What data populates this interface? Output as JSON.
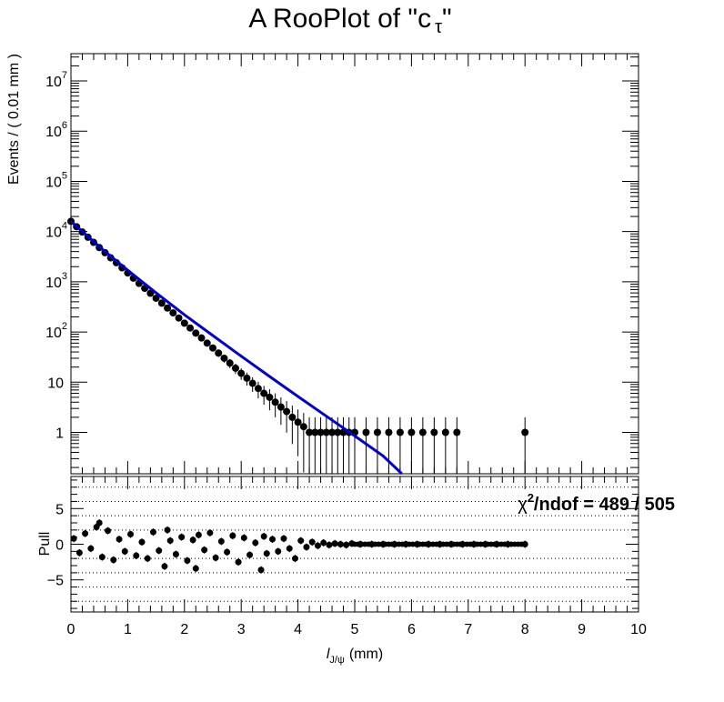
{
  "title": "A RooPlot of \"c τ\"",
  "title_main": "A RooPlot of \"c",
  "title_sub": "τ",
  "title_close": "\"",
  "colors": {
    "data": "#000000",
    "fit": "#0000cc",
    "frame": "#000000",
    "grid": "#000000"
  },
  "chart_data": [
    {
      "type": "scatter",
      "panel": "main",
      "ylabel": "Events / ( 0.01 mm )",
      "yscale": "log",
      "xlim": [
        0,
        10
      ],
      "ylim": [
        0.15,
        35000000
      ],
      "y_ticks": [
        {
          "value": 1,
          "label": "1"
        },
        {
          "value": 10,
          "label": "10"
        },
        {
          "value": 100,
          "label": "10",
          "exp": "2"
        },
        {
          "value": 1000,
          "label": "10",
          "exp": "3"
        },
        {
          "value": 10000,
          "label": "10",
          "exp": "4"
        },
        {
          "value": 100000,
          "label": "10",
          "exp": "5"
        },
        {
          "value": 1000000,
          "label": "10",
          "exp": "6"
        },
        {
          "value": 10000000,
          "label": "10",
          "exp": "7"
        }
      ],
      "series": [
        {
          "kind": "data",
          "x": [
            0.0,
            0.1,
            0.2,
            0.3,
            0.4,
            0.5,
            0.6,
            0.7,
            0.8,
            0.9,
            1.0,
            1.1,
            1.2,
            1.3,
            1.4,
            1.5,
            1.6,
            1.7,
            1.8,
            1.9,
            2.0,
            2.1,
            2.2,
            2.3,
            2.4,
            2.5,
            2.6,
            2.7,
            2.8,
            2.9,
            3.0,
            3.1,
            3.2,
            3.3,
            3.4,
            3.5,
            3.6,
            3.7,
            3.8,
            3.9,
            4.0,
            4.1,
            4.2,
            4.3,
            4.4,
            4.5,
            4.6,
            4.7,
            4.8,
            4.9,
            5.0,
            5.2,
            5.4,
            5.6,
            5.8,
            6.0,
            6.2,
            6.4,
            6.6,
            6.8,
            8.0
          ],
          "y": [
            16000,
            12500,
            9800,
            7700,
            6100,
            4800,
            3800,
            3000,
            2400,
            1900,
            1500,
            1180,
            930,
            740,
            590,
            470,
            375,
            300,
            240,
            190,
            150,
            120,
            95,
            76,
            60,
            48,
            38,
            30,
            24,
            19,
            15,
            12,
            9.5,
            7.5,
            6,
            5,
            4,
            3.2,
            2.6,
            2,
            1.6,
            1.3,
            1,
            1,
            1,
            1,
            1,
            1,
            1,
            1,
            1,
            1,
            1,
            1,
            1,
            1,
            1,
            1,
            1,
            1,
            1
          ]
        },
        {
          "kind": "fit",
          "x": [
            0.0,
            0.5,
            1.0,
            1.5,
            2.0,
            2.5,
            3.0,
            3.5,
            4.0,
            4.5,
            5.0,
            5.5,
            5.83
          ],
          "y": [
            16000,
            5000,
            1700,
            600,
            220,
            85,
            33,
            13,
            5.2,
            2.1,
            0.85,
            0.34,
            0.15
          ]
        }
      ]
    },
    {
      "type": "scatter",
      "panel": "pull",
      "xlabel": "l",
      "xlabel_sub": "J/ψ",
      "xlabel_unit": "(mm)",
      "ylabel": "Pull",
      "xlim": [
        0,
        10
      ],
      "ylim": [
        -9.5,
        9.5
      ],
      "x_ticks": [
        "0",
        "1",
        "2",
        "3",
        "4",
        "5",
        "6",
        "7",
        "8",
        "9",
        "10"
      ],
      "y_ticks": [
        {
          "value": -5,
          "label": "−5"
        },
        {
          "value": 0,
          "label": "0"
        },
        {
          "value": 5,
          "label": "5"
        }
      ],
      "dotted_lines": [
        -8,
        -6,
        -4,
        -2,
        2,
        4,
        6,
        8
      ],
      "annotation": {
        "chi_symbol": "χ",
        "sup": "2",
        "text": "/ndof = 489 / 505"
      },
      "series": [
        {
          "name": "pull",
          "x": [
            0.05,
            0.15,
            0.25,
            0.35,
            0.45,
            0.5,
            0.55,
            0.65,
            0.75,
            0.85,
            0.95,
            1.05,
            1.15,
            1.25,
            1.35,
            1.45,
            1.55,
            1.65,
            1.7,
            1.75,
            1.85,
            1.95,
            2.05,
            2.15,
            2.2,
            2.25,
            2.35,
            2.45,
            2.55,
            2.65,
            2.75,
            2.85,
            2.95,
            3.05,
            3.15,
            3.25,
            3.35,
            3.4,
            3.45,
            3.55,
            3.65,
            3.75,
            3.85,
            3.95,
            4.05,
            4.15,
            4.25,
            4.35,
            4.45,
            4.55,
            4.65,
            4.75,
            4.85,
            4.95,
            5.1,
            5.3,
            5.5,
            5.7,
            5.9,
            6.1,
            6.3,
            6.5,
            6.7,
            6.9,
            7.1,
            7.3,
            7.5,
            7.7,
            8.0
          ],
          "y": [
            0.8,
            -1.2,
            1.5,
            -0.6,
            2.4,
            3.0,
            -1.8,
            1.9,
            -2.2,
            0.7,
            -1.0,
            1.4,
            -1.6,
            0.3,
            -2.0,
            1.7,
            -0.9,
            -3.1,
            2.0,
            0.5,
            -1.4,
            1.0,
            -2.3,
            0.6,
            -3.4,
            1.3,
            -0.8,
            1.6,
            -1.9,
            0.4,
            -1.1,
            1.2,
            -2.5,
            0.9,
            -1.5,
            0.2,
            -3.6,
            1.1,
            -1.3,
            0.7,
            -1.0,
            0.8,
            -0.6,
            -2.0,
            0.5,
            -0.4,
            0.3,
            -0.2,
            0.2,
            -0.1,
            0.1,
            0.0,
            -0.1,
            0.1,
            0.0,
            0.0,
            0.0,
            0.0,
            0.0,
            0.0,
            0.0,
            0.0,
            0.0,
            0.0,
            0.0,
            0.0,
            0.0,
            0.0,
            0.0
          ]
        }
      ]
    }
  ]
}
